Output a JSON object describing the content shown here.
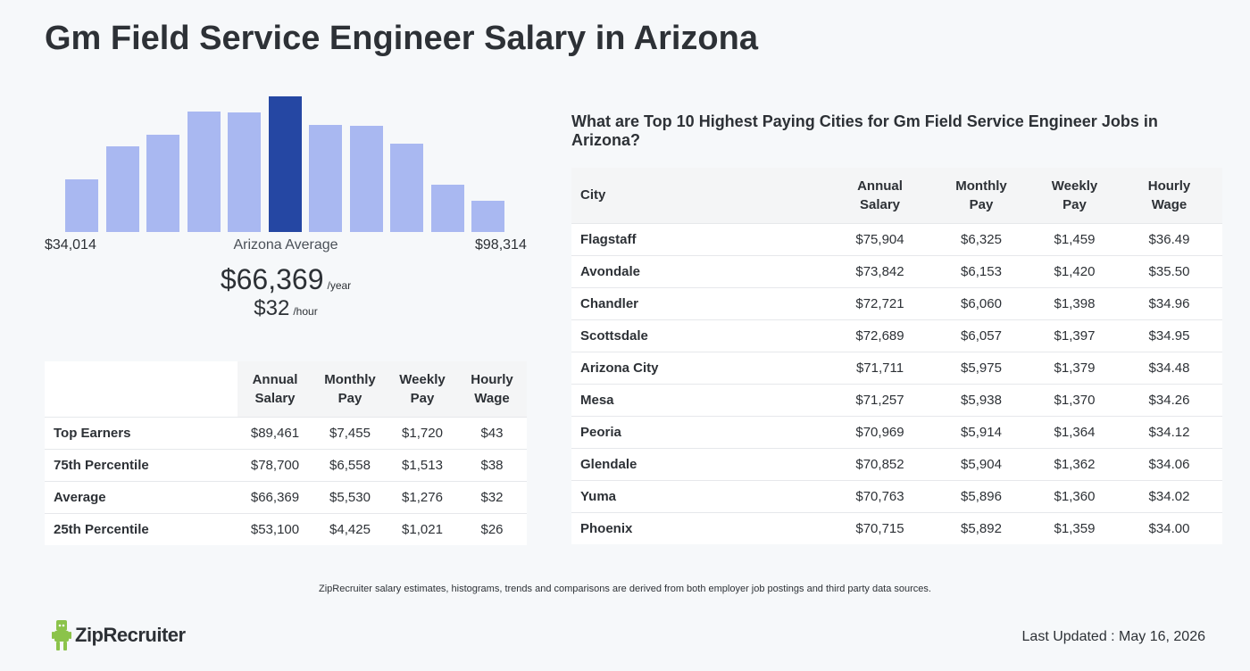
{
  "page": {
    "title": "Gm Field Service Engineer Salary in Arizona",
    "disclaimer": "ZipRecruiter salary estimates, histograms, trends and comparisons are derived from both employer job postings and third party data sources.",
    "last_updated": "Last Updated : May 16, 2026",
    "logo_text": "ZipRecruiter",
    "logo_icon": "zip-mascot-icon",
    "colors": {
      "bar": "#a9b8f1",
      "bar_highlight": "#2547a3",
      "logo_green": "#8bc34a"
    }
  },
  "chart_data": {
    "type": "bar",
    "title": "",
    "xlabel": "",
    "ylabel": "",
    "min_label": "$34,014",
    "max_label": "$98,314",
    "average_label": "Arizona Average",
    "categories": [
      "1",
      "2",
      "3",
      "4",
      "5",
      "6",
      "7",
      "8",
      "9",
      "10",
      "11"
    ],
    "values": [
      39,
      63,
      72,
      89,
      88,
      100,
      79,
      78,
      65,
      35,
      23
    ],
    "highlight_index": 5,
    "ylim": [
      0,
      100
    ]
  },
  "average": {
    "annual": "$66,369",
    "annual_unit": "/year",
    "hourly": "$32",
    "hourly_unit": "/hour"
  },
  "percentile_table": {
    "headers": [
      [
        "Annual",
        "Salary"
      ],
      [
        "Monthly",
        "Pay"
      ],
      [
        "Weekly",
        "Pay"
      ],
      [
        "Hourly",
        "Wage"
      ]
    ],
    "rows": [
      {
        "label": "Top Earners",
        "values": [
          "$89,461",
          "$7,455",
          "$1,720",
          "$43"
        ]
      },
      {
        "label": "75th Percentile",
        "values": [
          "$78,700",
          "$6,558",
          "$1,513",
          "$38"
        ]
      },
      {
        "label": "Average",
        "values": [
          "$66,369",
          "$5,530",
          "$1,276",
          "$32"
        ]
      },
      {
        "label": "25th Percentile",
        "values": [
          "$53,100",
          "$4,425",
          "$1,021",
          "$26"
        ]
      }
    ]
  },
  "city_section": {
    "title": "What are Top 10 Highest Paying Cities for Gm Field Service Engineer Jobs in Arizona?",
    "headers": {
      "city": "City",
      "cols": [
        [
          "Annual",
          "Salary"
        ],
        [
          "Monthly",
          "Pay"
        ],
        [
          "Weekly",
          "Pay"
        ],
        [
          "Hourly",
          "Wage"
        ]
      ]
    },
    "rows": [
      {
        "city": "Flagstaff",
        "values": [
          "$75,904",
          "$6,325",
          "$1,459",
          "$36.49"
        ]
      },
      {
        "city": "Avondale",
        "values": [
          "$73,842",
          "$6,153",
          "$1,420",
          "$35.50"
        ]
      },
      {
        "city": "Chandler",
        "values": [
          "$72,721",
          "$6,060",
          "$1,398",
          "$34.96"
        ]
      },
      {
        "city": "Scottsdale",
        "values": [
          "$72,689",
          "$6,057",
          "$1,397",
          "$34.95"
        ]
      },
      {
        "city": "Arizona City",
        "values": [
          "$71,711",
          "$5,975",
          "$1,379",
          "$34.48"
        ]
      },
      {
        "city": "Mesa",
        "values": [
          "$71,257",
          "$5,938",
          "$1,370",
          "$34.26"
        ]
      },
      {
        "city": "Peoria",
        "values": [
          "$70,969",
          "$5,914",
          "$1,364",
          "$34.12"
        ]
      },
      {
        "city": "Glendale",
        "values": [
          "$70,852",
          "$5,904",
          "$1,362",
          "$34.06"
        ]
      },
      {
        "city": "Yuma",
        "values": [
          "$70,763",
          "$5,896",
          "$1,360",
          "$34.02"
        ]
      },
      {
        "city": "Phoenix",
        "values": [
          "$70,715",
          "$5,892",
          "$1,359",
          "$34.00"
        ]
      }
    ]
  }
}
